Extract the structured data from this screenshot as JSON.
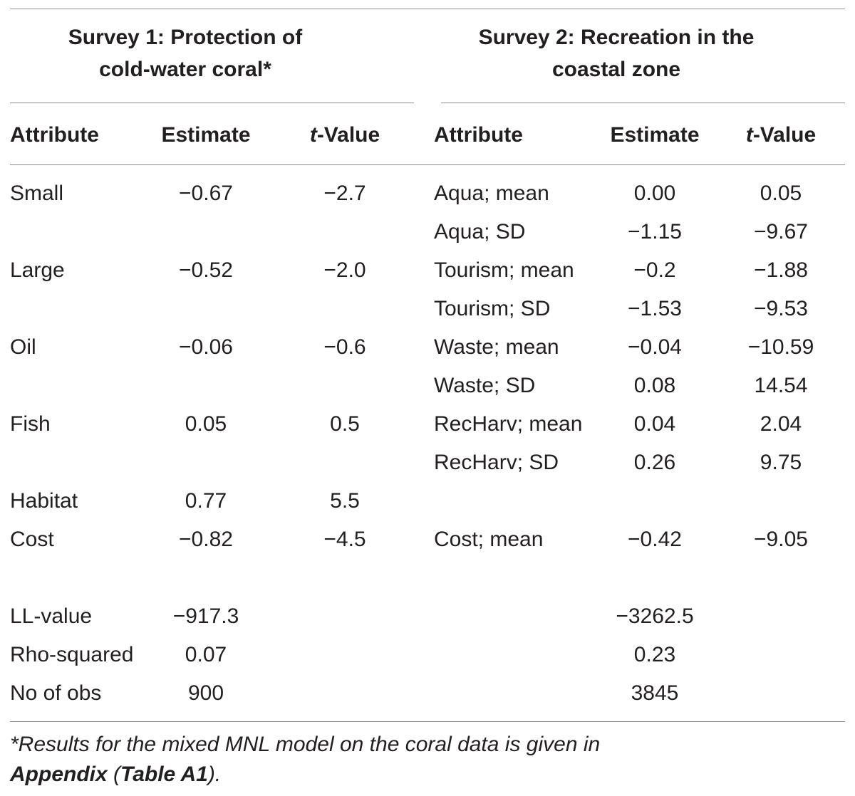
{
  "survey1": {
    "title": "Survey 1: Protection of cold-water coral*",
    "headers": {
      "attribute": "Attribute",
      "estimate": "Estimate",
      "t_value_italic": "t",
      "t_value_rest": "-Value"
    },
    "rows": [
      {
        "attribute": "Small",
        "estimate": "−0.67",
        "t": "−2.7"
      },
      {
        "attribute": "Large",
        "estimate": "−0.52",
        "t": "−2.0"
      },
      {
        "attribute": "Oil",
        "estimate": "−0.06",
        "t": "−0.6"
      },
      {
        "attribute": "Fish",
        "estimate": "0.05",
        "t": "0.5"
      },
      {
        "attribute": "Habitat",
        "estimate": "0.77",
        "t": "5.5"
      },
      {
        "attribute": "Cost",
        "estimate": "−0.82",
        "t": "−4.5"
      }
    ]
  },
  "survey2": {
    "title": "Survey 2: Recreation in the coastal zone",
    "headers": {
      "attribute": "Attribute",
      "estimate": "Estimate",
      "t_value_italic": "t",
      "t_value_rest": "-Value"
    },
    "rows": [
      {
        "attribute": "Aqua; mean",
        "estimate": "0.00",
        "t": "0.05"
      },
      {
        "attribute": "Aqua; SD",
        "estimate": "−1.15",
        "t": "−9.67"
      },
      {
        "attribute": "Tourism; mean",
        "estimate": "−0.2",
        "t": "−1.88"
      },
      {
        "attribute": "Tourism; SD",
        "estimate": "−1.53",
        "t": "−9.53"
      },
      {
        "attribute": "Waste; mean",
        "estimate": "−0.04",
        "t": "−10.59"
      },
      {
        "attribute": "Waste; SD",
        "estimate": "0.08",
        "t": "14.54"
      },
      {
        "attribute": "RecHarv; mean",
        "estimate": "0.04",
        "t": "2.04"
      },
      {
        "attribute": "RecHarv; SD",
        "estimate": "0.26",
        "t": "9.75"
      },
      {
        "attribute": "Cost; mean",
        "estimate": "−0.42",
        "t": "−9.05"
      }
    ]
  },
  "stats": [
    {
      "label": "LL-value",
      "survey1": "−917.3",
      "survey2": "−3262.5"
    },
    {
      "label": "Rho-squared",
      "survey1": "0.07",
      "survey2": "0.23"
    },
    {
      "label": "No of obs",
      "survey1": "900",
      "survey2": "3845"
    }
  ],
  "footnote": {
    "text": "*Results for the mixed MNL model on the coral data is given in",
    "appendix": "Appendix",
    "open_paren": " (",
    "table_ref": "Table A1",
    "close": ")."
  }
}
